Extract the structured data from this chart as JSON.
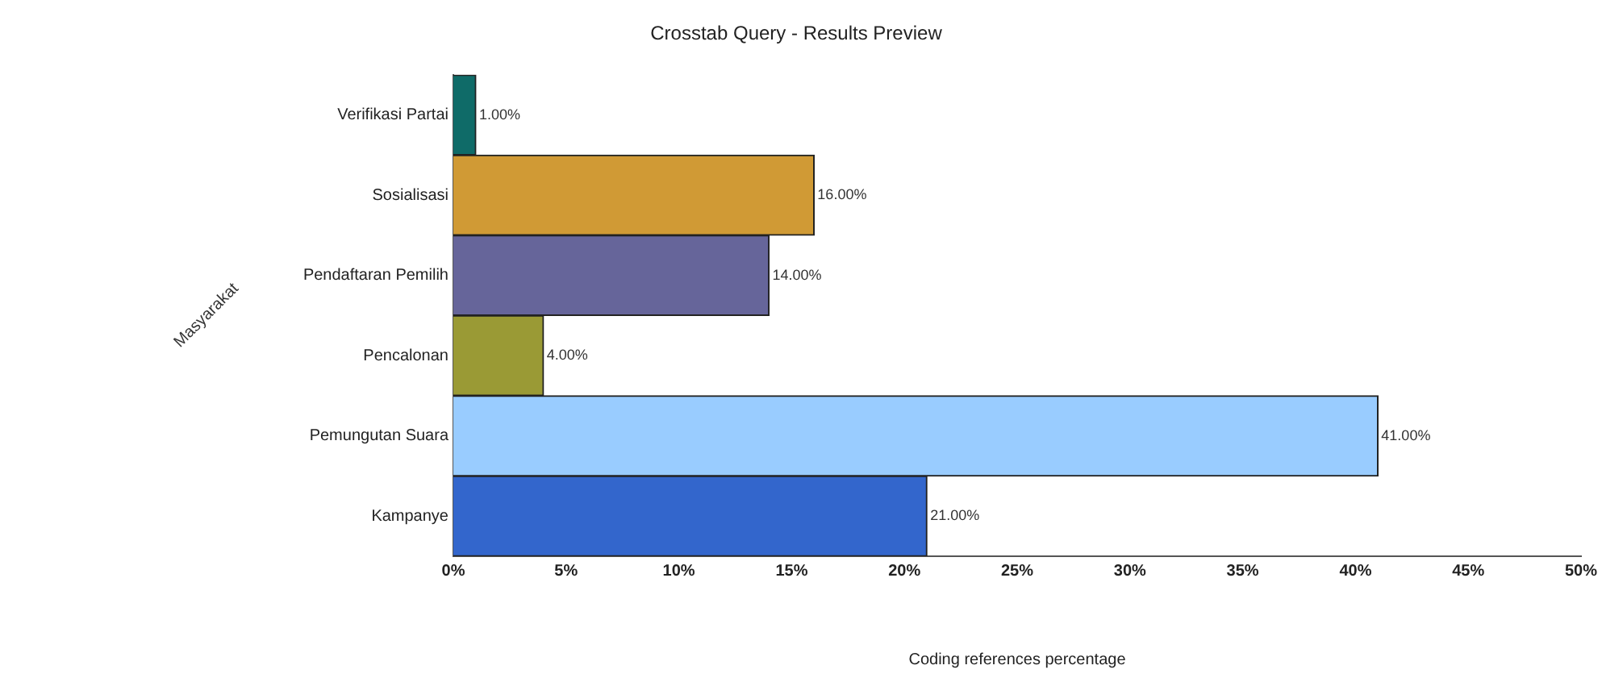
{
  "chart_data": {
    "type": "bar",
    "orientation": "horizontal",
    "title": "Crosstab Query - Results Preview",
    "xlabel": "Coding references percentage",
    "ylabel": "Masyarakat",
    "categories": [
      "Verifikasi Partai",
      "Sosialisasi",
      "Pendaftaran Pemilih",
      "Pencalonan",
      "Pemungutan Suara",
      "Kampanye"
    ],
    "values": [
      1,
      16,
      14,
      4,
      41,
      21
    ],
    "colors": [
      "#0f6b68",
      "#d09a35",
      "#66659a",
      "#9a9a35",
      "#99ccff",
      "#3366cc"
    ],
    "value_labels": [
      "1.00%",
      "16.00%",
      "14.00%",
      "4.00%",
      "41.00%",
      "21.00%"
    ],
    "xlim": [
      0,
      50
    ],
    "xticks": [
      {
        "value": 0,
        "label": "0%"
      },
      {
        "value": 5,
        "label": "5%"
      },
      {
        "value": 10,
        "label": "10%"
      },
      {
        "value": 15,
        "label": "15%"
      },
      {
        "value": 20,
        "label": "20%"
      },
      {
        "value": 25,
        "label": "25%"
      },
      {
        "value": 30,
        "label": "30%"
      },
      {
        "value": 35,
        "label": "35%"
      },
      {
        "value": 40,
        "label": "40%"
      },
      {
        "value": 45,
        "label": "45%"
      },
      {
        "value": 50,
        "label": "50%"
      }
    ],
    "grid": false,
    "legend": false
  }
}
